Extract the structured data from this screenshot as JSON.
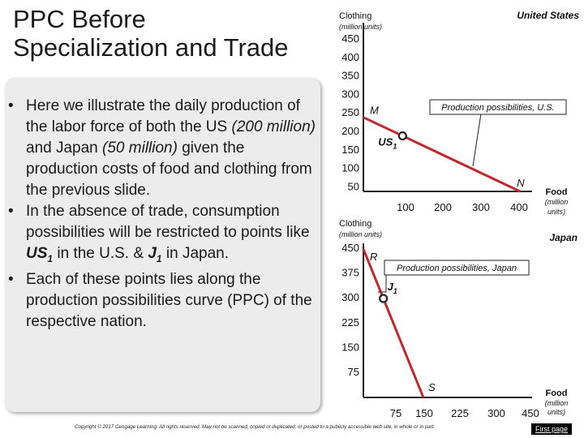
{
  "slide": {
    "title_line1": "PPC Before",
    "title_line2": "Specialization and Trade",
    "bullets": [
      {
        "parts": [
          {
            "t": "Here we illustrate the daily production of the labor force of both the US "
          },
          {
            "t": "(200 million)",
            "i": true
          },
          {
            "t": " and Japan "
          },
          {
            "t": "(50 million)",
            "i": true
          },
          {
            "t": " given the production costs of food and clothing from the previous slide."
          }
        ]
      },
      {
        "parts": [
          {
            "t": "In the absence of trade, consumption possibilities will be restricted to points like "
          },
          {
            "t": "US",
            "b": true,
            "i": true
          },
          {
            "t": "1",
            "b": true,
            "i": true,
            "sub": true
          },
          {
            "t": " in the U.S. & "
          },
          {
            "t": "J",
            "b": true,
            "i": true
          },
          {
            "t": "1",
            "b": true,
            "i": true,
            "sub": true
          },
          {
            "t": " in Japan."
          }
        ]
      },
      {
        "parts": [
          {
            "t": "Each of these points lies along the production possibilities curve (PPC) of the respective nation."
          }
        ]
      }
    ],
    "copyright": "Copyright © 2017 Cengage Learning. All rights reserved. May not be scanned, copied or duplicated, or posted to a publicly accessible web site, in whole or in part.",
    "first_page_label": "First page"
  },
  "colors": {
    "ppc_line": "#c0282c",
    "point_fill": "#ffffff",
    "point_stroke": "#222222"
  },
  "chart_data": [
    {
      "type": "line",
      "title": "United States",
      "ylabel": "Clothing",
      "ylabel_unit": "(million units)",
      "xlabel": "Food",
      "xlabel_unit": "(million units)",
      "y_ticks": [
        "450",
        "400",
        "350",
        "300",
        "250",
        "200",
        "150",
        "100",
        "50"
      ],
      "x_ticks": [
        "100",
        "200",
        "300",
        "400"
      ],
      "series": [
        {
          "name": "Production possibilities, U.S.",
          "x": [
            0,
            400
          ],
          "y": [
            200,
            0
          ]
        }
      ],
      "points": [
        {
          "label": "M",
          "x": 0,
          "y": 200,
          "marker": false
        },
        {
          "label": "US",
          "sub": "1",
          "x": 100,
          "y": 150,
          "marker": true
        },
        {
          "label": "N",
          "x": 400,
          "y": 0,
          "marker": false
        }
      ]
    },
    {
      "type": "line",
      "title": "Japan",
      "ylabel": "Clothing",
      "ylabel_unit": "(million units)",
      "xlabel": "Food",
      "xlabel_unit": "(million units)",
      "y_ticks": [
        "450",
        "375",
        "300",
        "225",
        "150",
        "75"
      ],
      "x_ticks": [
        "75",
        "150",
        "225",
        "300",
        "450"
      ],
      "series": [
        {
          "name": "Production possibilities, Japan",
          "x": [
            0,
            150
          ],
          "y": [
            450,
            0
          ]
        }
      ],
      "points": [
        {
          "label": "R",
          "x": 0,
          "y": 450,
          "marker": false
        },
        {
          "label": "J",
          "sub": "1",
          "x": 50,
          "y": 300,
          "marker": true
        },
        {
          "label": "S",
          "x": 150,
          "y": 0,
          "marker": false
        }
      ]
    }
  ]
}
